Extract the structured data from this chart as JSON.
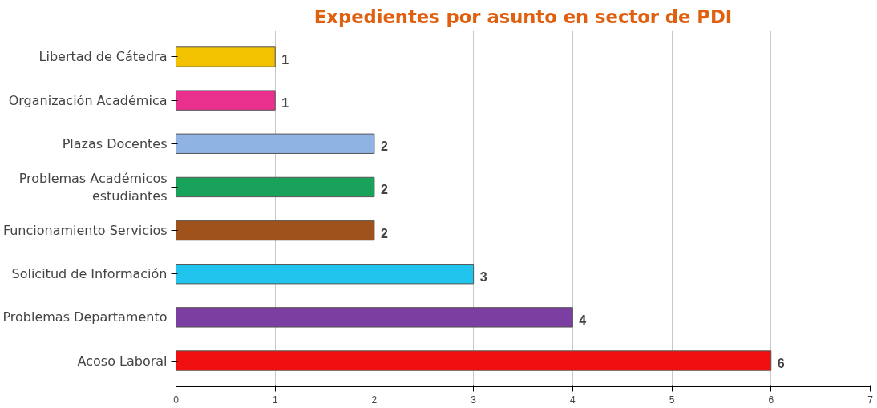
{
  "chart_data": {
    "type": "bar",
    "orientation": "horizontal",
    "title": "Expedientes por asunto en sector de PDI",
    "categories": [
      "Libertad de Cátedra",
      "Organización Académica",
      "Plazas Docentes",
      "Problemas Académicos estudiantes",
      "Funcionamiento Servicios",
      "Solicitud de Información",
      "Problemas Departamento",
      "Acoso Laboral"
    ],
    "values": [
      1,
      1,
      2,
      2,
      2,
      3,
      4,
      6
    ],
    "colors": [
      "#f2c200",
      "#e8308c",
      "#8fb4e3",
      "#19a35a",
      "#a0521c",
      "#21c4ec",
      "#7a3fa0",
      "#f01010"
    ],
    "xlim": [
      0,
      7
    ],
    "xticks": [
      0,
      1,
      2,
      3,
      4,
      5,
      6,
      7
    ],
    "grid": "x",
    "data_labels": true
  }
}
